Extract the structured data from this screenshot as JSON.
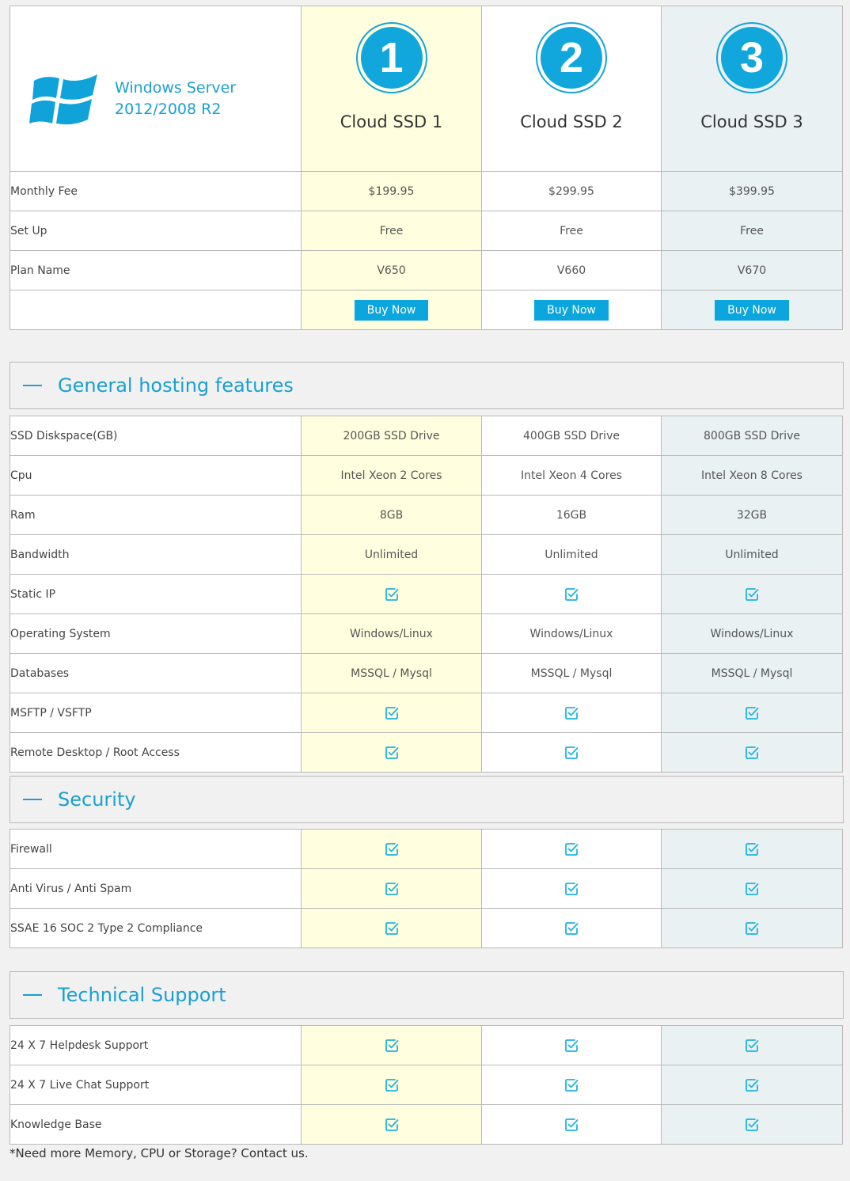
{
  "header": {
    "os_title_line1": "Windows Server",
    "os_title_line2": "2012/2008 R2",
    "plans": [
      {
        "number": "1",
        "name": "Cloud SSD 1"
      },
      {
        "number": "2",
        "name": "Cloud SSD 2"
      },
      {
        "number": "3",
        "name": "Cloud SSD 3"
      }
    ]
  },
  "pricing": {
    "monthly_fee": {
      "label": "Monthly Fee",
      "values": [
        "$199.95",
        "$299.95",
        "$399.95"
      ]
    },
    "setup": {
      "label": "Set Up",
      "values": [
        "Free",
        "Free",
        "Free"
      ]
    },
    "plan_name": {
      "label": "Plan Name",
      "values": [
        "V650",
        "V660",
        "V670"
      ]
    },
    "buy_label": "Buy Now"
  },
  "sections": [
    {
      "title": "General hosting features",
      "rows": [
        {
          "label": "SSD Diskspace(GB)",
          "values": [
            "200GB SSD Drive",
            "400GB SSD Drive",
            "800GB SSD Drive"
          ]
        },
        {
          "label": "Cpu",
          "values": [
            "Intel Xeon 2 Cores",
            "Intel Xeon 4 Cores",
            "Intel Xeon 8 Cores"
          ]
        },
        {
          "label": "Ram",
          "values": [
            "8GB",
            "16GB",
            "32GB"
          ]
        },
        {
          "label": "Bandwidth",
          "values": [
            "Unlimited",
            "Unlimited",
            "Unlimited"
          ]
        },
        {
          "label": "Static IP",
          "check": true
        },
        {
          "label": "Operating System",
          "values": [
            "Windows/Linux",
            "Windows/Linux",
            "Windows/Linux"
          ]
        },
        {
          "label": "Databases",
          "values": [
            "MSSQL / Mysql",
            "MSSQL / Mysql",
            "MSSQL / Mysql"
          ]
        },
        {
          "label": "MSFTP / VSFTP",
          "check": true
        },
        {
          "label": "Remote Desktop / Root Access",
          "check": true
        }
      ]
    },
    {
      "title": "Security",
      "rows": [
        {
          "label": "Firewall",
          "check": true
        },
        {
          "label": "Anti Virus / Anti Spam",
          "check": true
        },
        {
          "label": "SSAE 16 SOC 2 Type 2 Compliance",
          "check": true
        }
      ]
    },
    {
      "title": "Technical Support",
      "rows": [
        {
          "label": "24 X 7 Helpdesk Support",
          "check": true
        },
        {
          "label": "24 X 7 Live Chat Support",
          "check": true
        },
        {
          "label": "Knowledge Base",
          "check": true
        }
      ]
    }
  ],
  "footnote": "*Need more Memory, CPU or Storage? Contact us.",
  "colors": {
    "accent": "#12a7dc",
    "plan1_bg": "#ffffdf",
    "plan2_bg": "#ffffff",
    "plan3_bg": "#eaf1f3"
  },
  "icons": {
    "check": "checkbox-checked-icon",
    "logo": "windows-logo-icon"
  }
}
